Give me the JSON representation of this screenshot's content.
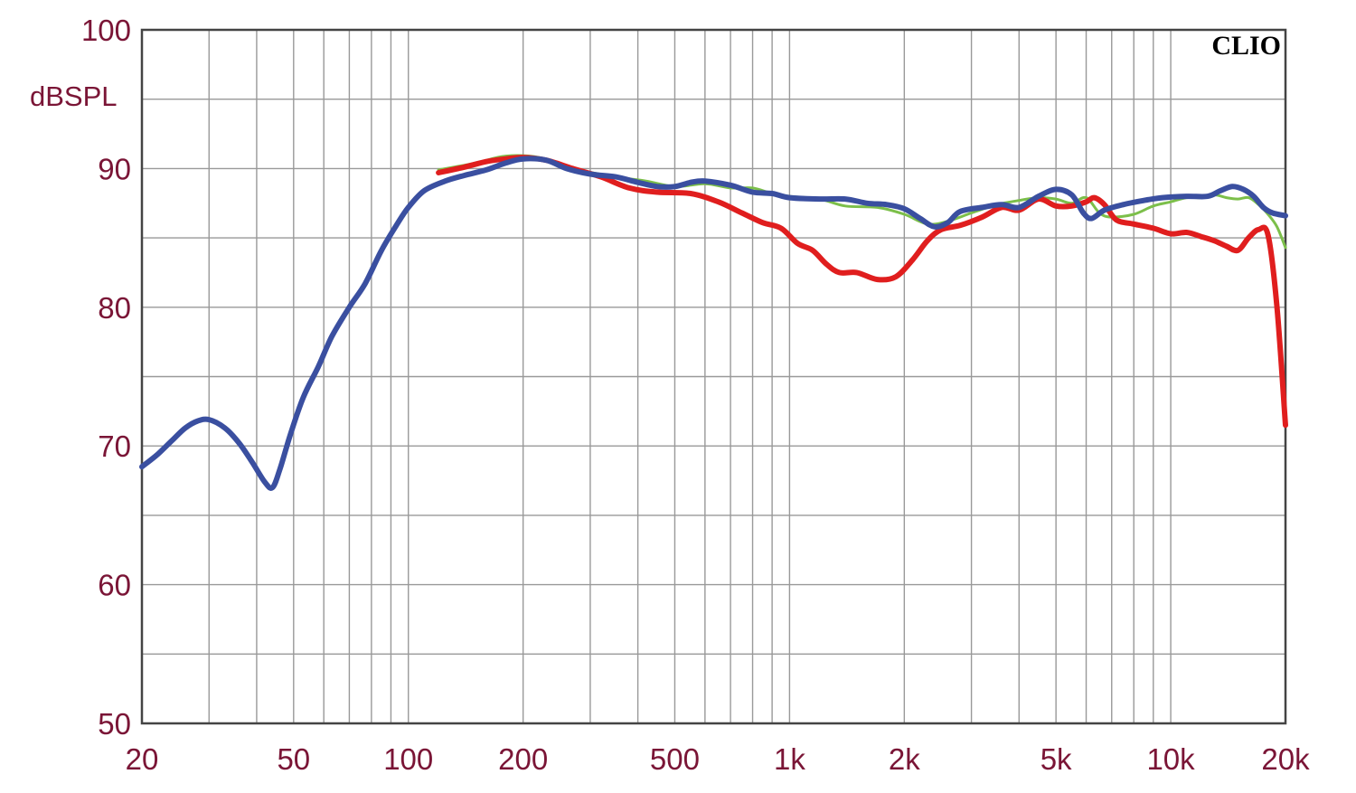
{
  "chart_data": {
    "type": "line",
    "ylabel": "dBSPL",
    "watermark": "CLIO",
    "x_scale": "log",
    "xlim": [
      20,
      20000
    ],
    "ylim": [
      50,
      100
    ],
    "x_ticks": [
      {
        "value": 20,
        "label": "20"
      },
      {
        "value": 50,
        "label": "50"
      },
      {
        "value": 100,
        "label": "100"
      },
      {
        "value": 200,
        "label": "200"
      },
      {
        "value": 500,
        "label": "500"
      },
      {
        "value": 1000,
        "label": "1k"
      },
      {
        "value": 2000,
        "label": "2k"
      },
      {
        "value": 5000,
        "label": "5k"
      },
      {
        "value": 10000,
        "label": "10k"
      },
      {
        "value": 20000,
        "label": "20k"
      }
    ],
    "y_ticks": [
      {
        "value": 50,
        "label": "50"
      },
      {
        "value": 60,
        "label": "60"
      },
      {
        "value": 70,
        "label": "70"
      },
      {
        "value": 80,
        "label": "80"
      },
      {
        "value": 90,
        "label": "90"
      },
      {
        "value": 100,
        "label": "100"
      }
    ],
    "grid": true,
    "grid_color": "#999999",
    "axis_color": "#444444",
    "series": [
      {
        "color": "#7cbf4a",
        "stroke_width": 3,
        "points": [
          [
            120,
            89.9
          ],
          [
            150,
            90.4
          ],
          [
            180,
            90.9
          ],
          [
            220,
            90.8
          ],
          [
            270,
            90.0
          ],
          [
            350,
            89.4
          ],
          [
            420,
            89.1
          ],
          [
            500,
            88.7
          ],
          [
            600,
            88.9
          ],
          [
            700,
            88.6
          ],
          [
            800,
            88.6
          ],
          [
            900,
            88.2
          ],
          [
            1000,
            88.0
          ],
          [
            1200,
            87.8
          ],
          [
            1400,
            87.3
          ],
          [
            1700,
            87.2
          ],
          [
            2000,
            86.7
          ],
          [
            2300,
            86.0
          ],
          [
            2600,
            86.2
          ],
          [
            3000,
            86.8
          ],
          [
            3500,
            87.4
          ],
          [
            4000,
            87.7
          ],
          [
            4500,
            87.9
          ],
          [
            5000,
            87.8
          ],
          [
            5500,
            87.5
          ],
          [
            6000,
            87.9
          ],
          [
            6500,
            86.8
          ],
          [
            7000,
            86.5
          ],
          [
            8000,
            86.7
          ],
          [
            9000,
            87.3
          ],
          [
            10000,
            87.6
          ],
          [
            11000,
            87.9
          ],
          [
            12000,
            87.9
          ],
          [
            13000,
            88.1
          ],
          [
            14000,
            87.9
          ],
          [
            15000,
            87.8
          ],
          [
            16000,
            87.9
          ],
          [
            17000,
            87.4
          ],
          [
            18000,
            86.7
          ],
          [
            19000,
            85.8
          ],
          [
            20000,
            84.3
          ]
        ]
      },
      {
        "color": "#e01e1e",
        "stroke_width": 6,
        "points": [
          [
            120,
            89.7
          ],
          [
            140,
            90.1
          ],
          [
            160,
            90.5
          ],
          [
            180,
            90.7
          ],
          [
            200,
            90.8
          ],
          [
            230,
            90.6
          ],
          [
            270,
            90.0
          ],
          [
            320,
            89.4
          ],
          [
            380,
            88.6
          ],
          [
            450,
            88.3
          ],
          [
            550,
            88.2
          ],
          [
            650,
            87.6
          ],
          [
            750,
            86.8
          ],
          [
            850,
            86.1
          ],
          [
            950,
            85.7
          ],
          [
            1050,
            84.6
          ],
          [
            1150,
            84.1
          ],
          [
            1250,
            83.1
          ],
          [
            1350,
            82.5
          ],
          [
            1500,
            82.5
          ],
          [
            1700,
            82.0
          ],
          [
            1900,
            82.2
          ],
          [
            2100,
            83.4
          ],
          [
            2300,
            84.8
          ],
          [
            2500,
            85.6
          ],
          [
            2800,
            85.9
          ],
          [
            3200,
            86.5
          ],
          [
            3600,
            87.2
          ],
          [
            4000,
            87.0
          ],
          [
            4500,
            87.8
          ],
          [
            5000,
            87.3
          ],
          [
            5500,
            87.3
          ],
          [
            6000,
            87.6
          ],
          [
            6300,
            87.9
          ],
          [
            6700,
            87.4
          ],
          [
            7200,
            86.3
          ],
          [
            8000,
            86.0
          ],
          [
            9000,
            85.7
          ],
          [
            10000,
            85.3
          ],
          [
            11000,
            85.4
          ],
          [
            12000,
            85.1
          ],
          [
            13000,
            84.8
          ],
          [
            14000,
            84.4
          ],
          [
            15000,
            84.1
          ],
          [
            16000,
            85.0
          ],
          [
            17000,
            85.6
          ],
          [
            18000,
            85.2
          ],
          [
            19000,
            80.0
          ],
          [
            20000,
            71.5
          ]
        ]
      },
      {
        "color": "#3a4fa0",
        "stroke_width": 6,
        "points": [
          [
            20,
            68.5
          ],
          [
            22,
            69.4
          ],
          [
            24,
            70.4
          ],
          [
            26,
            71.3
          ],
          [
            28,
            71.8
          ],
          [
            30,
            71.9
          ],
          [
            33,
            71.3
          ],
          [
            36,
            70.2
          ],
          [
            39,
            68.8
          ],
          [
            42,
            67.4
          ],
          [
            44,
            67.0
          ],
          [
            46,
            68.3
          ],
          [
            49,
            70.8
          ],
          [
            53,
            73.5
          ],
          [
            58,
            75.7
          ],
          [
            63,
            77.9
          ],
          [
            70,
            80.0
          ],
          [
            77,
            81.7
          ],
          [
            85,
            84.1
          ],
          [
            93,
            85.9
          ],
          [
            100,
            87.2
          ],
          [
            110,
            88.4
          ],
          [
            125,
            89.1
          ],
          [
            140,
            89.5
          ],
          [
            160,
            89.9
          ],
          [
            180,
            90.4
          ],
          [
            200,
            90.7
          ],
          [
            230,
            90.6
          ],
          [
            260,
            90.0
          ],
          [
            300,
            89.6
          ],
          [
            350,
            89.4
          ],
          [
            400,
            89.0
          ],
          [
            450,
            88.7
          ],
          [
            500,
            88.7
          ],
          [
            550,
            89.0
          ],
          [
            600,
            89.1
          ],
          [
            700,
            88.8
          ],
          [
            800,
            88.3
          ],
          [
            900,
            88.2
          ],
          [
            1000,
            87.9
          ],
          [
            1200,
            87.8
          ],
          [
            1400,
            87.8
          ],
          [
            1600,
            87.5
          ],
          [
            1800,
            87.4
          ],
          [
            2000,
            87.1
          ],
          [
            2200,
            86.4
          ],
          [
            2400,
            85.8
          ],
          [
            2600,
            86.1
          ],
          [
            2800,
            86.9
          ],
          [
            3200,
            87.2
          ],
          [
            3600,
            87.4
          ],
          [
            4000,
            87.2
          ],
          [
            4500,
            88.0
          ],
          [
            5000,
            88.5
          ],
          [
            5500,
            88.1
          ],
          [
            5900,
            86.8
          ],
          [
            6200,
            86.4
          ],
          [
            6700,
            87.0
          ],
          [
            7500,
            87.4
          ],
          [
            8500,
            87.7
          ],
          [
            9500,
            87.9
          ],
          [
            11000,
            88.0
          ],
          [
            12500,
            88.0
          ],
          [
            13500,
            88.4
          ],
          [
            14500,
            88.7
          ],
          [
            15500,
            88.5
          ],
          [
            16500,
            88.0
          ],
          [
            17500,
            87.2
          ],
          [
            18500,
            86.8
          ],
          [
            20000,
            86.6
          ]
        ]
      }
    ]
  }
}
